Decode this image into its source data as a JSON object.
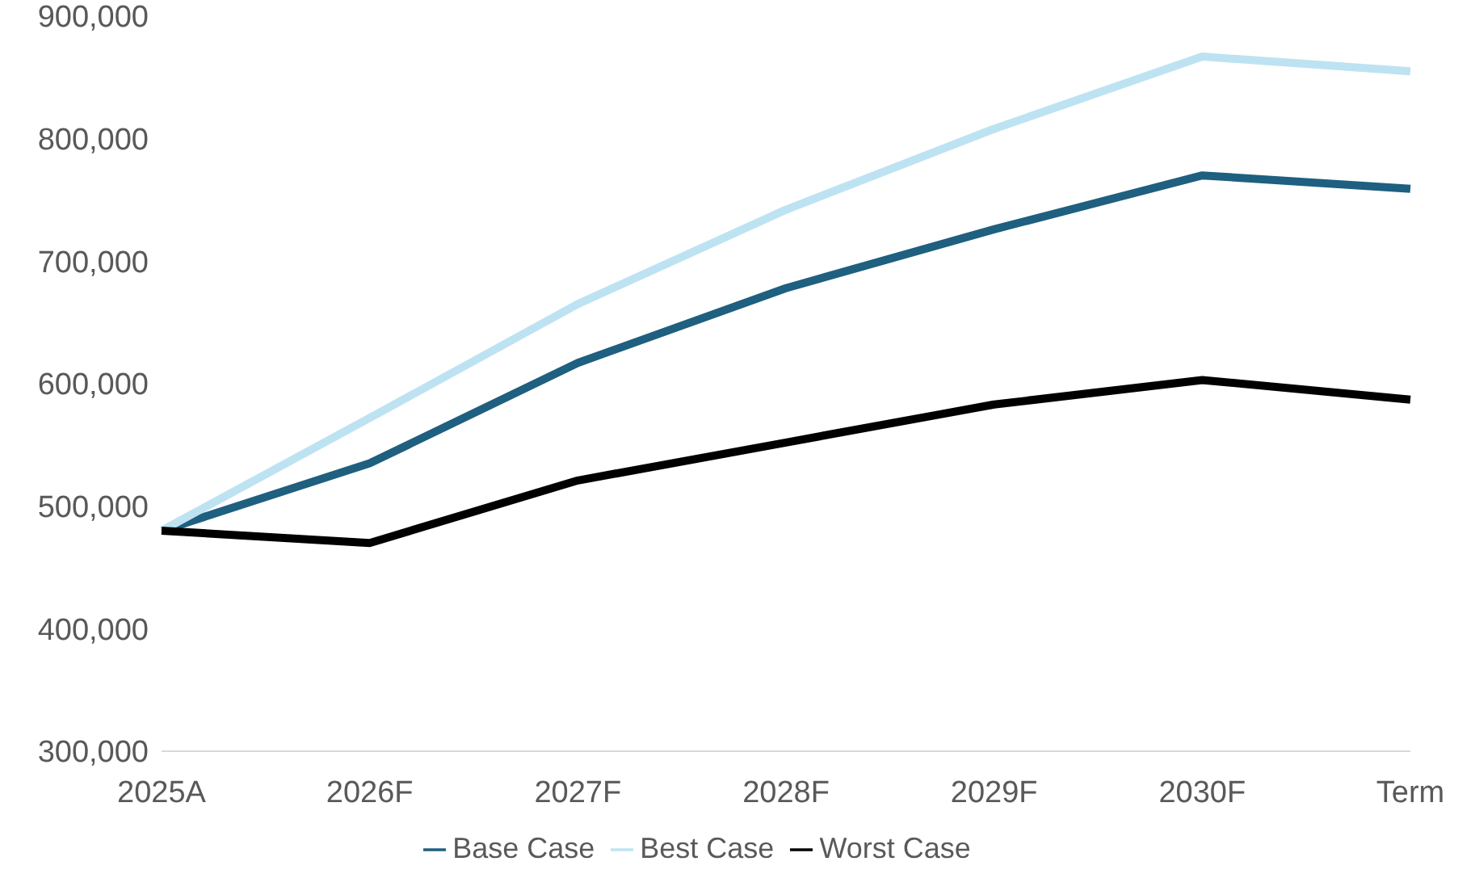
{
  "chart_data": {
    "type": "line",
    "categories": [
      "2025A",
      "2026F",
      "2027F",
      "2028F",
      "2029F",
      "2030F",
      "Term"
    ],
    "series": [
      {
        "name": "Base Case",
        "color": "#1f5f7f",
        "values": [
          480000,
          535000,
          617000,
          678000,
          726000,
          770000,
          759000
        ]
      },
      {
        "name": "Best Case",
        "color": "#bde3f2",
        "values": [
          480000,
          572000,
          665000,
          742000,
          808000,
          867000,
          855000
        ]
      },
      {
        "name": "Worst Case",
        "color": "#000000",
        "values": [
          480000,
          470000,
          521000,
          552000,
          583000,
          603000,
          587000
        ]
      }
    ],
    "ylim": [
      300000,
      900000
    ],
    "yticks": [
      {
        "value": 300000,
        "label": "300,000"
      },
      {
        "value": 400000,
        "label": "400,000"
      },
      {
        "value": 500000,
        "label": "500,000"
      },
      {
        "value": 600000,
        "label": "600,000"
      },
      {
        "value": 700000,
        "label": "700,000"
      },
      {
        "value": 800000,
        "label": "800,000"
      },
      {
        "value": 900000,
        "label": "900,000"
      }
    ],
    "grid": false,
    "legend": "bottom",
    "marker": "none",
    "line_style": "solid"
  }
}
